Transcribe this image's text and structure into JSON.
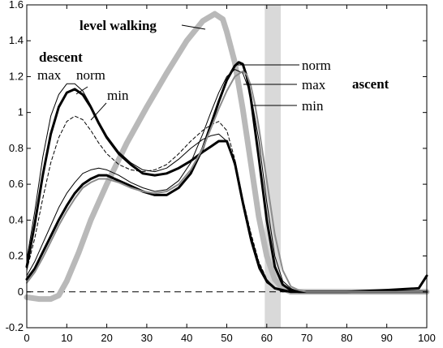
{
  "chart_data": {
    "type": "line",
    "xlim": [
      0,
      100
    ],
    "ylim": [
      -0.2,
      1.6
    ],
    "x_ticks": [
      "0",
      "10",
      "20",
      "30",
      "40",
      "50",
      "60",
      "70",
      "80",
      "90",
      "100"
    ],
    "y_ticks": [
      "-0.2",
      "0",
      "0.2",
      "0.4",
      "0.6",
      "0.8",
      "1",
      "1.2",
      "1.4",
      "1.6"
    ],
    "grid": false,
    "reference_line": {
      "y": 0,
      "style": "dashed"
    },
    "shaded_band": {
      "x": [
        59.5,
        63.5
      ],
      "color": "#d9d9d9"
    },
    "annotations": {
      "level_walking": "level walking",
      "descent": "descent",
      "ascent": "ascent",
      "descent_max": "max",
      "descent_norm": "norm",
      "descent_min": "min",
      "ascent_norm": "norm",
      "ascent_max": "max",
      "ascent_min": "min"
    },
    "colors": {
      "level_walking": "#b9b9b9",
      "lines": "#000000"
    },
    "series": [
      {
        "group": "level walking",
        "style": "gray-thick",
        "x": [
          0,
          3,
          6,
          8,
          10,
          13,
          16,
          20,
          25,
          30,
          35,
          40,
          44,
          47,
          49,
          50,
          52,
          54,
          56,
          58,
          60,
          62,
          64,
          66,
          68,
          70,
          75,
          80,
          90,
          100
        ],
        "y": [
          -0.03,
          -0.04,
          -0.04,
          -0.02,
          0.06,
          0.22,
          0.4,
          0.6,
          0.83,
          1.03,
          1.22,
          1.4,
          1.51,
          1.55,
          1.52,
          1.45,
          1.28,
          1.02,
          0.72,
          0.42,
          0.2,
          0.07,
          0.02,
          0.0,
          0.0,
          0.0,
          0.0,
          0.0,
          0.0,
          0.0
        ]
      },
      {
        "group": "descent norm",
        "style": "black-thick",
        "x": [
          0,
          2,
          4,
          6,
          8,
          10,
          12,
          14,
          16,
          18,
          20,
          23,
          26,
          29,
          32,
          35,
          38,
          41,
          44,
          46,
          48,
          50,
          52,
          54,
          56,
          58,
          60,
          62,
          64,
          66,
          68,
          70,
          75,
          80,
          90,
          100
        ],
        "y": [
          0.14,
          0.38,
          0.65,
          0.88,
          1.03,
          1.11,
          1.13,
          1.1,
          1.03,
          0.94,
          0.86,
          0.77,
          0.71,
          0.66,
          0.65,
          0.66,
          0.69,
          0.73,
          0.78,
          0.81,
          0.84,
          0.84,
          0.72,
          0.5,
          0.3,
          0.15,
          0.06,
          0.02,
          0.01,
          0.0,
          0.0,
          0.0,
          0.0,
          0.0,
          0.0,
          0.0
        ]
      },
      {
        "group": "descent max",
        "style": "black-thin",
        "x": [
          0,
          2,
          4,
          6,
          8,
          10,
          12,
          14,
          16,
          18,
          20,
          23,
          26,
          29,
          32,
          35,
          38,
          41,
          44,
          46,
          48,
          50,
          52,
          54,
          56,
          58,
          60,
          62,
          64,
          66,
          68,
          70,
          75,
          80,
          90,
          100
        ],
        "y": [
          0.18,
          0.45,
          0.75,
          0.98,
          1.1,
          1.16,
          1.16,
          1.12,
          1.04,
          0.95,
          0.87,
          0.78,
          0.72,
          0.68,
          0.67,
          0.69,
          0.74,
          0.8,
          0.85,
          0.87,
          0.88,
          0.84,
          0.7,
          0.48,
          0.28,
          0.13,
          0.05,
          0.02,
          0.0,
          0.0,
          0.0,
          0.0,
          0.0,
          0.0,
          0.0,
          0.0
        ]
      },
      {
        "group": "descent min",
        "style": "black-dashed",
        "x": [
          0,
          2,
          4,
          6,
          8,
          10,
          12,
          14,
          16,
          18,
          20,
          23,
          26,
          29,
          32,
          35,
          38,
          41,
          44,
          46,
          48,
          50,
          52,
          54,
          56,
          58,
          60,
          62,
          64,
          66,
          68,
          70,
          75,
          80,
          90,
          100
        ],
        "y": [
          0.12,
          0.3,
          0.52,
          0.72,
          0.86,
          0.95,
          0.98,
          0.96,
          0.9,
          0.83,
          0.77,
          0.71,
          0.68,
          0.67,
          0.68,
          0.71,
          0.77,
          0.84,
          0.9,
          0.93,
          0.95,
          0.9,
          0.74,
          0.52,
          0.33,
          0.17,
          0.07,
          0.02,
          0.0,
          0.0,
          0.0,
          0.0,
          0.0,
          0.0,
          0.0,
          0.0
        ]
      },
      {
        "group": "ascent norm",
        "style": "black-thick",
        "x": [
          0,
          2,
          4,
          6,
          8,
          10,
          12,
          14,
          16,
          18,
          20,
          23,
          26,
          29,
          32,
          35,
          38,
          41,
          44,
          46,
          48,
          50,
          52,
          53,
          54,
          55,
          56,
          58,
          60,
          62,
          64,
          66,
          68,
          70,
          75,
          80,
          90,
          98,
          100
        ],
        "y": [
          0.07,
          0.13,
          0.22,
          0.31,
          0.4,
          0.48,
          0.55,
          0.6,
          0.63,
          0.65,
          0.65,
          0.62,
          0.59,
          0.56,
          0.54,
          0.54,
          0.58,
          0.66,
          0.8,
          0.93,
          1.06,
          1.18,
          1.26,
          1.28,
          1.27,
          1.2,
          1.08,
          0.75,
          0.4,
          0.14,
          0.04,
          0.01,
          0.0,
          0.0,
          0.0,
          0.0,
          0.01,
          0.02,
          0.09
        ]
      },
      {
        "group": "ascent max",
        "style": "black-thin",
        "x": [
          0,
          2,
          4,
          6,
          8,
          10,
          12,
          14,
          16,
          18,
          20,
          23,
          26,
          29,
          32,
          35,
          38,
          41,
          44,
          46,
          48,
          50,
          52,
          54,
          56,
          58,
          60,
          62,
          64,
          66,
          68,
          70,
          75,
          80,
          90,
          100
        ],
        "y": [
          0.09,
          0.17,
          0.27,
          0.37,
          0.47,
          0.55,
          0.61,
          0.66,
          0.68,
          0.69,
          0.68,
          0.65,
          0.61,
          0.58,
          0.56,
          0.57,
          0.62,
          0.72,
          0.88,
          1.0,
          1.11,
          1.2,
          1.24,
          1.22,
          1.1,
          0.85,
          0.5,
          0.2,
          0.06,
          0.02,
          0.0,
          0.0,
          0.0,
          0.0,
          0.0,
          0.0
        ]
      },
      {
        "group": "ascent min",
        "style": "gray-medium",
        "x": [
          0,
          2,
          4,
          6,
          8,
          10,
          12,
          14,
          16,
          18,
          20,
          23,
          26,
          29,
          32,
          35,
          38,
          41,
          44,
          46,
          48,
          50,
          52,
          54,
          55,
          56,
          57,
          58,
          60,
          62,
          64,
          66,
          68,
          70,
          75,
          80,
          90,
          100
        ],
        "y": [
          0.05,
          0.11,
          0.19,
          0.28,
          0.37,
          0.45,
          0.52,
          0.58,
          0.61,
          0.63,
          0.63,
          0.61,
          0.58,
          0.56,
          0.55,
          0.56,
          0.6,
          0.68,
          0.8,
          0.91,
          1.02,
          1.12,
          1.2,
          1.23,
          1.21,
          1.15,
          1.05,
          0.92,
          0.62,
          0.32,
          0.12,
          0.03,
          0.01,
          0.0,
          0.0,
          0.0,
          0.0,
          0.0
        ]
      }
    ]
  }
}
